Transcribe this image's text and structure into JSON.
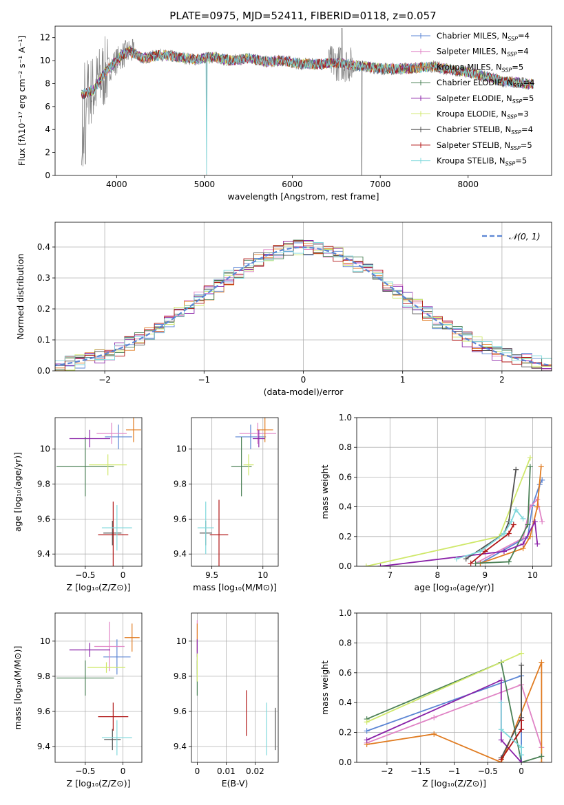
{
  "colors": {
    "Chabrier MILES": "#5b85d4",
    "Salpeter MILES": "#e083c5",
    "Kroupa MILES": "#e07b20",
    "Chabrier ELODIE": "#4a8055",
    "Salpeter ELODIE": "#8a22a8",
    "Kroupa ELODIE": "#cfe86a",
    "Chabrier STELIB": "#505050",
    "Salpeter STELIB": "#b01515",
    "Kroupa STELIB": "#7fd8dc",
    "data": "#808080",
    "gauss": "#5b85d4"
  },
  "chart_data": [
    {
      "type": "line",
      "title": "PLATE=0975, MJD=52411, FIBERID=0118, z=0.057",
      "xlabel": "wavelength [Angstrom, rest frame]",
      "ylabel": "Flux [fλ10⁻¹⁷ erg cm⁻² s⁻¹ A⁻¹]",
      "xlim": [
        3300,
        8950
      ],
      "ylim": [
        0,
        13
      ],
      "xticks": [
        4000,
        5000,
        6000,
        7000,
        8000
      ],
      "yticks": [
        0,
        2,
        4,
        6,
        8,
        10,
        12
      ],
      "grid": false,
      "legend_position": "top-right",
      "legend": [
        "Chabrier MILES, NSSP=4",
        "Salpeter MILES, NSSP=4",
        "Kroupa MILES, NSSP=5",
        "Chabrier ELODIE, NSSP=4",
        "Salpeter ELODIE, NSSP=5",
        "Kroupa ELODIE, NSSP=3",
        "Chabrier STELIB, NSSP=4",
        "Salpeter STELIB, NSSP=5",
        "Kroupa STELIB, NSSP=5"
      ],
      "continuum": [
        [
          3600,
          7.0
        ],
        [
          3750,
          7.5
        ],
        [
          3850,
          8.8
        ],
        [
          3950,
          9.6
        ],
        [
          4050,
          10.4
        ],
        [
          4150,
          10.8
        ],
        [
          4300,
          10.2
        ],
        [
          4500,
          10.5
        ],
        [
          4700,
          10.3
        ],
        [
          4900,
          10.1
        ],
        [
          5100,
          10.3
        ],
        [
          5300,
          10.0
        ],
        [
          5500,
          10.2
        ],
        [
          5700,
          9.9
        ],
        [
          5900,
          10.0
        ],
        [
          6100,
          9.7
        ],
        [
          6300,
          9.7
        ],
        [
          6500,
          9.8
        ],
        [
          6800,
          9.5
        ],
        [
          7000,
          9.3
        ],
        [
          7300,
          9.3
        ],
        [
          7600,
          9.5
        ],
        [
          7800,
          9.2
        ],
        [
          8000,
          9.0
        ],
        [
          8200,
          8.6
        ],
        [
          8400,
          8.2
        ],
        [
          8700,
          8.0
        ]
      ]
    },
    {
      "type": "line",
      "xlabel": "(data-model)/error",
      "ylabel": "Normed distribution",
      "xlim": [
        -2.5,
        2.5
      ],
      "ylim": [
        0,
        0.48
      ],
      "xticks": [
        -2,
        -1,
        0,
        1,
        2
      ],
      "yticks": [
        0.0,
        0.1,
        0.2,
        0.3,
        0.4
      ],
      "grid": true,
      "legend_position": "top-right",
      "legend": [
        "𝒩(0, 1)"
      ]
    },
    {
      "type": "scatter",
      "xlabel": "Z [log₁₀(Z/Z⊙)]",
      "ylabel": "age  [log₁₀(age/yr)]",
      "xlim": [
        -0.9,
        0.25
      ],
      "ylim": [
        9.33,
        10.18
      ],
      "xticks": [
        -0.5,
        0.0
      ],
      "yticks": [
        9.4,
        9.6,
        9.8,
        10.0
      ],
      "grid": true,
      "points": [
        {
          "m": "Chabrier MILES",
          "x": -0.06,
          "y": 10.07,
          "xe": 0.18,
          "ye": 0.07
        },
        {
          "m": "Salpeter MILES",
          "x": -0.15,
          "y": 10.09,
          "xe": 0.2,
          "ye": 0.06
        },
        {
          "m": "Kroupa MILES",
          "x": 0.14,
          "y": 10.11,
          "xe": 0.1,
          "ye": 0.07
        },
        {
          "m": "Chabrier ELODIE",
          "x": -0.5,
          "y": 9.9,
          "xe": 0.38,
          "ye": 0.17
        },
        {
          "m": "Salpeter ELODIE",
          "x": -0.44,
          "y": 10.06,
          "xe": 0.27,
          "ye": 0.05
        },
        {
          "m": "Kroupa ELODIE",
          "x": -0.2,
          "y": 9.91,
          "xe": 0.25,
          "ye": 0.06
        },
        {
          "m": "Chabrier STELIB",
          "x": -0.14,
          "y": 9.52,
          "xe": 0.12,
          "ye": 0.07
        },
        {
          "m": "Salpeter STELIB",
          "x": -0.13,
          "y": 9.51,
          "xe": 0.2,
          "ye": 0.19
        },
        {
          "m": "Kroupa STELIB",
          "x": -0.08,
          "y": 9.55,
          "xe": 0.2,
          "ye": 0.13
        }
      ]
    },
    {
      "type": "scatter",
      "xlabel": "mass [log₁₀(M/M⊙)]",
      "xlim": [
        9.3,
        10.15
      ],
      "ylim": [
        9.33,
        10.18
      ],
      "xticks": [
        9.5,
        10.0
      ],
      "yticks": [
        9.4,
        9.6,
        9.8,
        10.0
      ],
      "grid": true,
      "points": [
        {
          "m": "Chabrier MILES",
          "x": 9.88,
          "y": 10.07,
          "xe": 0.15,
          "ye": 0.07
        },
        {
          "m": "Salpeter MILES",
          "x": 9.95,
          "y": 10.09,
          "xe": 0.18,
          "ye": 0.06
        },
        {
          "m": "Kroupa MILES",
          "x": 10.02,
          "y": 10.11,
          "xe": 0.08,
          "ye": 0.07
        },
        {
          "m": "Chabrier ELODIE",
          "x": 9.79,
          "y": 9.9,
          "xe": 0.1,
          "ye": 0.17
        },
        {
          "m": "Salpeter ELODIE",
          "x": 9.96,
          "y": 10.06,
          "xe": 0.06,
          "ye": 0.05
        },
        {
          "m": "Kroupa ELODIE",
          "x": 9.86,
          "y": 9.91,
          "xe": 0.05,
          "ye": 0.06
        },
        {
          "m": "Chabrier STELIB",
          "x": 9.44,
          "y": 9.52,
          "xe": 0.06,
          "ye": 0.07
        },
        {
          "m": "Salpeter STELIB",
          "x": 9.57,
          "y": 9.51,
          "xe": 0.09,
          "ye": 0.2
        },
        {
          "m": "Kroupa STELIB",
          "x": 9.44,
          "y": 9.55,
          "xe": 0.08,
          "ye": 0.15
        }
      ]
    },
    {
      "type": "line",
      "xlabel": "age  [log₁₀(age/yr)]",
      "ylabel": "mass weight",
      "xlim": [
        6.3,
        10.4
      ],
      "ylim": [
        0,
        1.0
      ],
      "xticks": [
        7,
        8,
        9,
        10
      ],
      "yticks": [
        0.0,
        0.2,
        0.4,
        0.6,
        0.8,
        1.0
      ],
      "grid": true,
      "series": [
        {
          "m": "Chabrier MILES",
          "x": [
            8.9,
            9.9,
            10.0,
            10.15,
            10.2
          ],
          "y": [
            0.02,
            0.2,
            0.41,
            0.55,
            0.58
          ]
        },
        {
          "m": "Salpeter MILES",
          "x": [
            8.8,
            9.8,
            9.95,
            10.1,
            10.2
          ],
          "y": [
            0.02,
            0.19,
            0.4,
            0.45,
            0.3
          ]
        },
        {
          "m": "Kroupa MILES",
          "x": [
            8.9,
            9.8,
            9.95,
            10.1,
            10.18
          ],
          "y": [
            0.02,
            0.12,
            0.2,
            0.4,
            0.67
          ]
        },
        {
          "m": "Chabrier ELODIE",
          "x": [
            8.8,
            9.5,
            9.9,
            9.95
          ],
          "y": [
            0.02,
            0.03,
            0.28,
            0.67
          ]
        },
        {
          "m": "Salpeter ELODIE",
          "x": [
            6.8,
            9.4,
            9.8,
            10.05,
            10.1
          ],
          "y": [
            0.0,
            0.1,
            0.15,
            0.3,
            0.15
          ]
        },
        {
          "m": "Kroupa ELODIE",
          "x": [
            6.5,
            9.3,
            9.95
          ],
          "y": [
            0.0,
            0.2,
            0.73
          ]
        },
        {
          "m": "Chabrier STELIB",
          "x": [
            8.6,
            9.4,
            9.5,
            9.65
          ],
          "y": [
            0.05,
            0.22,
            0.3,
            0.65
          ]
        },
        {
          "m": "Salpeter STELIB",
          "x": [
            8.7,
            9.0,
            9.5,
            9.6
          ],
          "y": [
            0.02,
            0.1,
            0.22,
            0.28
          ]
        },
        {
          "m": "Kroupa STELIB",
          "x": [
            8.4,
            8.9,
            9.4,
            9.55,
            9.65,
            9.8
          ],
          "y": [
            0.05,
            0.1,
            0.22,
            0.3,
            0.38,
            0.32
          ]
        }
      ]
    },
    {
      "type": "scatter",
      "xlabel": "Z [log₁₀(Z/Z⊙)]",
      "ylabel": "mass [log₁₀(M/M⊙)]",
      "xlim": [
        -0.9,
        0.25
      ],
      "ylim": [
        9.31,
        10.16
      ],
      "xticks": [
        -0.5,
        0.0
      ],
      "yticks": [
        9.4,
        9.6,
        9.8,
        10.0
      ],
      "grid": true,
      "points": [
        {
          "m": "Chabrier MILES",
          "x": -0.08,
          "y": 9.91,
          "xe": 0.18,
          "ye": 0.1
        },
        {
          "m": "Salpeter MILES",
          "x": -0.18,
          "y": 9.97,
          "xe": 0.2,
          "ye": 0.14
        },
        {
          "m": "Kroupa MILES",
          "x": 0.12,
          "y": 10.02,
          "xe": 0.1,
          "ye": 0.08
        },
        {
          "m": "Chabrier ELODIE",
          "x": -0.5,
          "y": 9.79,
          "xe": 0.38,
          "ye": 0.1
        },
        {
          "m": "Salpeter ELODIE",
          "x": -0.44,
          "y": 9.95,
          "xe": 0.27,
          "ye": 0.04
        },
        {
          "m": "Kroupa ELODIE",
          "x": -0.22,
          "y": 9.85,
          "xe": 0.25,
          "ye": 0.03
        },
        {
          "m": "Chabrier STELIB",
          "x": -0.14,
          "y": 9.44,
          "xe": 0.11,
          "ye": 0.06
        },
        {
          "m": "Salpeter STELIB",
          "x": -0.13,
          "y": 9.57,
          "xe": 0.2,
          "ye": 0.08
        },
        {
          "m": "Kroupa STELIB",
          "x": -0.08,
          "y": 9.45,
          "xe": 0.2,
          "ye": 0.1
        }
      ]
    },
    {
      "type": "scatter",
      "xlabel": "E(B-V)",
      "xlim": [
        -0.002,
        0.028
      ],
      "ylim": [
        9.31,
        10.16
      ],
      "xticks": [
        0.0,
        0.01,
        0.02
      ],
      "yticks": [
        9.4,
        9.6,
        9.8,
        10.0
      ],
      "grid": true,
      "points": [
        {
          "m": "Chabrier MILES",
          "x": 0.0,
          "y": 9.91,
          "xe": 0,
          "ye": 0.1
        },
        {
          "m": "Salpeter MILES",
          "x": 0.0,
          "y": 9.98,
          "xe": 0,
          "ye": 0.14
        },
        {
          "m": "Kroupa MILES",
          "x": 0.0,
          "y": 10.02,
          "xe": 0,
          "ye": 0.08
        },
        {
          "m": "Chabrier ELODIE",
          "x": 0.0,
          "y": 9.79,
          "xe": 0,
          "ye": 0.1
        },
        {
          "m": "Salpeter ELODIE",
          "x": 0.0,
          "y": 9.96,
          "xe": 0,
          "ye": 0.05
        },
        {
          "m": "Kroupa ELODIE",
          "x": 0.0,
          "y": 9.85,
          "xe": 0,
          "ye": 0.08
        },
        {
          "m": "Chabrier STELIB",
          "x": 0.027,
          "y": 9.5,
          "xe": 0,
          "ye": 0.12
        },
        {
          "m": "Salpeter STELIB",
          "x": 0.017,
          "y": 9.59,
          "xe": 0,
          "ye": 0.13
        },
        {
          "m": "Kroupa STELIB",
          "x": 0.024,
          "y": 9.5,
          "xe": 0,
          "ye": 0.15
        }
      ]
    },
    {
      "type": "line",
      "xlabel": "Z [log₁₀(Z/Z⊙)]",
      "ylabel": "mass weight",
      "xlim": [
        -2.45,
        0.45
      ],
      "ylim": [
        0,
        1.0
      ],
      "xticks": [
        -2.0,
        -1.5,
        -1.0,
        -0.5,
        0.0
      ],
      "yticks": [
        0.0,
        0.2,
        0.4,
        0.6,
        0.8,
        1.0
      ],
      "grid": true,
      "series": [
        {
          "m": "Chabrier MILES",
          "x": [
            -2.3,
            0.0,
            0.0
          ],
          "y": [
            0.21,
            0.58,
            0.0
          ]
        },
        {
          "m": "Salpeter MILES",
          "x": [
            -2.3,
            -1.3,
            0.0,
            0.3
          ],
          "y": [
            0.13,
            0.3,
            0.52,
            0.1
          ]
        },
        {
          "m": "Kroupa MILES",
          "x": [
            -2.3,
            -1.3,
            -0.3,
            0.3,
            0.3
          ],
          "y": [
            0.12,
            0.19,
            0.0,
            0.67,
            0.0
          ]
        },
        {
          "m": "Chabrier ELODIE",
          "x": [
            -2.3,
            -0.3,
            0.0,
            0.3
          ],
          "y": [
            0.29,
            0.67,
            0.0,
            0.04
          ]
        },
        {
          "m": "Salpeter ELODIE",
          "x": [
            -2.3,
            -0.3,
            -0.3,
            0.0
          ],
          "y": [
            0.15,
            0.55,
            0.15,
            0.0
          ]
        },
        {
          "m": "Kroupa ELODIE",
          "x": [
            -2.3,
            0.0
          ],
          "y": [
            0.27,
            0.73
          ]
        },
        {
          "m": "Chabrier STELIB",
          "x": [
            -0.3,
            0.0,
            0.0
          ],
          "y": [
            0.03,
            0.3,
            0.65
          ]
        },
        {
          "m": "Salpeter STELIB",
          "x": [
            -0.3,
            0.0,
            0.0
          ],
          "y": [
            0.02,
            0.22,
            0.28
          ]
        },
        {
          "m": "Kroupa STELIB",
          "x": [
            -0.3,
            -0.3,
            0.0,
            0.0
          ],
          "y": [
            0.4,
            0.22,
            0.1,
            0.05
          ]
        }
      ]
    }
  ]
}
